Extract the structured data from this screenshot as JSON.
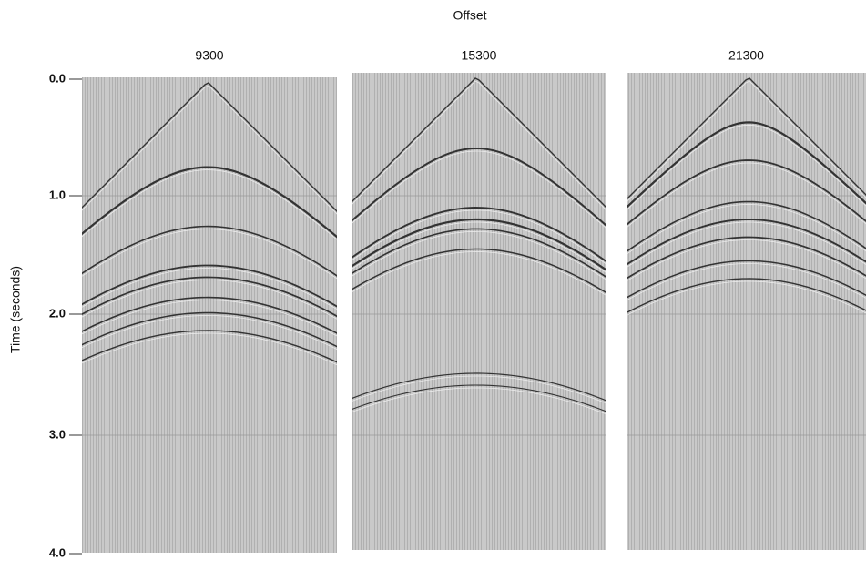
{
  "header": {
    "title": "Offset"
  },
  "y_axis": {
    "label": "Time (seconds)",
    "ticks": [
      "0.0",
      "1.0",
      "2.0",
      "3.0",
      "4.0"
    ]
  },
  "panels": [
    {
      "label": "9300"
    },
    {
      "label": "15300"
    },
    {
      "label": "21300"
    }
  ]
}
